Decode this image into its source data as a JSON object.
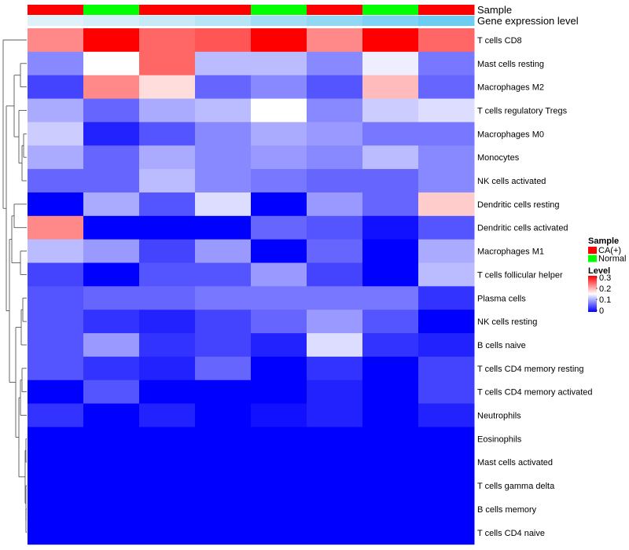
{
  "chart_data": {
    "type": "heatmap",
    "annotation_rows": [
      "Sample",
      "Gene expression level"
    ],
    "rows": [
      "T cells CD8",
      "Mast cells resting",
      "Macrophages M2",
      "T cells regulatory  Tregs",
      "Macrophages M0",
      "Monocytes",
      "NK cells activated",
      "Dendritic cells resting",
      "Dendritic cells activated",
      "Macrophages M1",
      "T cells follicular helper",
      "Plasma cells",
      "NK cells resting",
      "B cells naive",
      "T cells CD4 memory resting",
      "T cells CD4 memory activated",
      "Neutrophils",
      "Eosinophils",
      "Mast cells activated",
      "T cells gamma delta",
      "B cells memory",
      "T cells CD4 naive"
    ],
    "sample_groups": [
      "CA(+)",
      "Normal",
      "CA(+)",
      "CA(+)",
      "Normal",
      "CA(+)",
      "Normal",
      "CA(+)"
    ],
    "gene_expression": [
      0.05,
      0.12,
      0.22,
      0.35,
      0.5,
      0.62,
      0.75,
      0.88
    ],
    "values": [
      [
        0.22,
        0.3,
        0.24,
        0.25,
        0.3,
        0.22,
        0.3,
        0.24
      ],
      [
        0.08,
        0.15,
        0.24,
        0.11,
        0.11,
        0.08,
        0.14,
        0.07
      ],
      [
        0.04,
        0.22,
        0.17,
        0.06,
        0.08,
        0.05,
        0.19,
        0.06
      ],
      [
        0.1,
        0.06,
        0.1,
        0.11,
        0.15,
        0.08,
        0.12,
        0.13
      ],
      [
        0.12,
        0.02,
        0.05,
        0.08,
        0.1,
        0.09,
        0.07,
        0.07
      ],
      [
        0.1,
        0.06,
        0.1,
        0.08,
        0.09,
        0.08,
        0.11,
        0.08
      ],
      [
        0.06,
        0.06,
        0.11,
        0.08,
        0.07,
        0.06,
        0.06,
        0.08
      ],
      [
        0.0,
        0.1,
        0.05,
        0.13,
        0.0,
        0.09,
        0.06,
        0.18
      ],
      [
        0.22,
        0.0,
        0.0,
        0.0,
        0.06,
        0.05,
        0.01,
        0.05
      ],
      [
        0.11,
        0.09,
        0.04,
        0.09,
        0.0,
        0.06,
        0.0,
        0.1
      ],
      [
        0.04,
        0.0,
        0.05,
        0.05,
        0.09,
        0.04,
        0.0,
        0.11
      ],
      [
        0.05,
        0.06,
        0.06,
        0.07,
        0.07,
        0.07,
        0.07,
        0.03
      ],
      [
        0.05,
        0.03,
        0.02,
        0.04,
        0.06,
        0.09,
        0.05,
        0.0
      ],
      [
        0.05,
        0.09,
        0.03,
        0.04,
        0.02,
        0.13,
        0.03,
        0.02
      ],
      [
        0.05,
        0.03,
        0.02,
        0.06,
        0.0,
        0.03,
        0.0,
        0.04
      ],
      [
        0.0,
        0.05,
        0.0,
        0.0,
        0.0,
        0.02,
        0.0,
        0.04
      ],
      [
        0.03,
        0.0,
        0.02,
        0.0,
        0.01,
        0.02,
        0.0,
        0.02
      ],
      [
        0.0,
        0.0,
        0.0,
        0.0,
        0.0,
        0.0,
        0.0,
        0.0
      ],
      [
        0.0,
        0.0,
        0.0,
        0.0,
        0.0,
        0.0,
        0.0,
        0.0
      ],
      [
        0.0,
        0.0,
        0.0,
        0.0,
        0.0,
        0.0,
        0.0,
        0.0
      ],
      [
        0.0,
        0.0,
        0.0,
        0.0,
        0.0,
        0.0,
        0.0,
        0.0
      ],
      [
        0.0,
        0.0,
        0.0,
        0.0,
        0.0,
        0.0,
        0.0,
        0.0
      ]
    ],
    "color_scale": {
      "low": "#0000FF",
      "mid": "#FFFFFF",
      "high": "#FF0000",
      "min": 0,
      "mid_value": 0.15,
      "max": 0.3
    },
    "legend": {
      "sample_title": "Sample",
      "sample_items": [
        {
          "label": "CA(+)",
          "color": "#FF0000"
        },
        {
          "label": "Normal",
          "color": "#00FF00"
        }
      ],
      "level_title": "Level",
      "level_ticks": [
        "0.3",
        "0.2",
        "0.1",
        "0"
      ]
    },
    "expression_colors": {
      "low": "#E6F4FA",
      "high": "#5BC8F2"
    },
    "dendrogram": "row clustering (left)",
    "legend_position": "right"
  }
}
